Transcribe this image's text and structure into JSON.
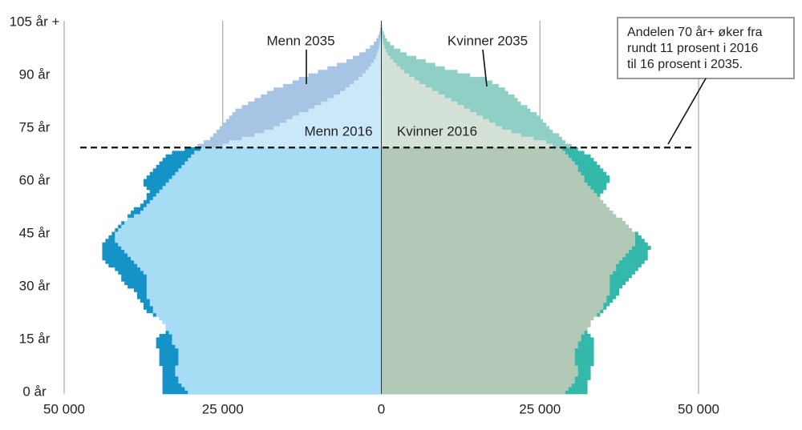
{
  "chart_data": {
    "type": "pyramid",
    "categories": [
      "0 år",
      null,
      null,
      null,
      null,
      null,
      null,
      null,
      null,
      null,
      null,
      null,
      null,
      null,
      null,
      "15 år",
      null,
      null,
      null,
      null,
      null,
      null,
      null,
      null,
      null,
      null,
      null,
      null,
      null,
      null,
      "30 år",
      null,
      null,
      null,
      null,
      null,
      null,
      null,
      null,
      null,
      null,
      null,
      null,
      null,
      null,
      "45 år",
      null,
      null,
      null,
      null,
      null,
      null,
      null,
      null,
      null,
      null,
      null,
      null,
      null,
      null,
      "60 år",
      null,
      null,
      null,
      null,
      null,
      null,
      null,
      null,
      null,
      null,
      null,
      null,
      null,
      null,
      "75 år",
      null,
      null,
      null,
      null,
      null,
      null,
      null,
      null,
      null,
      null,
      null,
      null,
      null,
      null,
      "90 år",
      null,
      null,
      null,
      null,
      null,
      null,
      null,
      null,
      null,
      null,
      null,
      null,
      null,
      null,
      "105 år +"
    ],
    "xlim": [
      -50000,
      50000
    ],
    "xticks": [
      {
        "value": -50000,
        "label": "50 000"
      },
      {
        "value": -25000,
        "label": "25 000"
      },
      0,
      {
        "value": 25000,
        "label": "25 000"
      },
      {
        "value": 50000,
        "label": "50 000"
      }
    ],
    "grid": true,
    "reference_line": 70,
    "annotation": [
      "Andelen 70 år+ øker fra",
      "rundt 11 prosent i 2016",
      "til 16 prosent i 2035."
    ],
    "series": [
      {
        "name": "Menn 2035",
        "color": "#1593c8",
        "color_above_line": "#a7c4e5",
        "values": [
          -34500,
          -34500,
          -34500,
          -34500,
          -34500,
          -34500,
          -34500,
          -34500,
          -35000,
          -35000,
          -35000,
          -35000,
          -35000,
          -35500,
          -35500,
          -35500,
          -35000,
          -34000,
          -33500,
          -34000,
          -34500,
          -35000,
          -36000,
          -37000,
          -37500,
          -37500,
          -38000,
          -38500,
          -38500,
          -39000,
          -40000,
          -40500,
          -41000,
          -41000,
          -41500,
          -42000,
          -43000,
          -43500,
          -44000,
          -44000,
          -44000,
          -44000,
          -44000,
          -43500,
          -43000,
          -42500,
          -42000,
          -41500,
          -41000,
          -40000,
          -40000,
          -39500,
          -39000,
          -38000,
          -37500,
          -37000,
          -37000,
          -36500,
          -37000,
          -37500,
          -37500,
          -37000,
          -36500,
          -36000,
          -35500,
          -35000,
          -34500,
          -34000,
          -33000,
          -31000,
          -29000,
          -28000,
          -27000,
          -26500,
          -26000,
          -25500,
          -25000,
          -24500,
          -24000,
          -23500,
          -23000,
          -22000,
          -21000,
          -20000,
          -19000,
          -18000,
          -17000,
          -15500,
          -14000,
          -13000,
          -11500,
          -10000,
          -8500,
          -7000,
          -5500,
          -4500,
          -3500,
          -2500,
          -1800,
          -1200,
          -800,
          -500,
          -300,
          -200,
          -100,
          -50
        ]
      },
      {
        "name": "Menn 2016",
        "color": "#a6dcf4",
        "color_above_line": "#cbe8f8",
        "values": [
          -30500,
          -31000,
          -31500,
          -32000,
          -32000,
          -32500,
          -32500,
          -32500,
          -32000,
          -32000,
          -32000,
          -32000,
          -32000,
          -32500,
          -33000,
          -33000,
          -33000,
          -33500,
          -34000,
          -34000,
          -34500,
          -35000,
          -35500,
          -36000,
          -36000,
          -36500,
          -36500,
          -37000,
          -37000,
          -37000,
          -37000,
          -37000,
          -37000,
          -37000,
          -37500,
          -38000,
          -38500,
          -39000,
          -39500,
          -40000,
          -40500,
          -41000,
          -41500,
          -42000,
          -42000,
          -42000,
          -41500,
          -41000,
          -40500,
          -40000,
          -39000,
          -38000,
          -37500,
          -37000,
          -36500,
          -36000,
          -35500,
          -35000,
          -34500,
          -34000,
          -33500,
          -33000,
          -32500,
          -32000,
          -31500,
          -31000,
          -30500,
          -30000,
          -29500,
          -28500,
          -25000,
          -24000,
          -22000,
          -20000,
          -18500,
          -17000,
          -16000,
          -15000,
          -14000,
          -13000,
          -11500,
          -10500,
          -9500,
          -8500,
          -7500,
          -6500,
          -5700,
          -5000,
          -4300,
          -3600,
          -3000,
          -2500,
          -2000,
          -1600,
          -1200,
          -900,
          -700,
          -500,
          -350,
          -250,
          -180,
          -120,
          -80,
          -50,
          -30,
          -50
        ]
      },
      {
        "name": "Kvinner 2035",
        "color": "#33b8aa",
        "color_above_line": "#8fcfc5",
        "values": [
          32500,
          32500,
          32500,
          32500,
          33000,
          33000,
          33000,
          33000,
          33500,
          33500,
          33500,
          33500,
          33500,
          33500,
          33500,
          33500,
          33000,
          32500,
          32000,
          32500,
          33000,
          33500,
          34500,
          35000,
          35500,
          36000,
          36500,
          37000,
          37500,
          37500,
          38000,
          38500,
          39000,
          39500,
          40000,
          40500,
          41000,
          41500,
          42000,
          42000,
          42000,
          42500,
          42000,
          41500,
          41000,
          40500,
          39500,
          39000,
          38500,
          37500,
          37000,
          36500,
          35500,
          35000,
          34500,
          34500,
          34500,
          35000,
          35500,
          35500,
          36000,
          36000,
          35500,
          35000,
          34500,
          34000,
          33500,
          33000,
          32000,
          31000,
          30000,
          29000,
          28500,
          28000,
          27000,
          26500,
          26000,
          25500,
          25000,
          24500,
          23500,
          23000,
          22000,
          21500,
          21000,
          20000,
          19500,
          18500,
          17500,
          16500,
          14000,
          12000,
          10000,
          8500,
          7000,
          5500,
          4000,
          3000,
          2000,
          1400,
          900,
          600,
          400,
          200,
          100,
          50
        ]
      },
      {
        "name": "Kvinner 2016",
        "color": "#b2c9b8",
        "color_above_line": "#d4e1d7",
        "values": [
          29000,
          29500,
          30000,
          30500,
          30500,
          31000,
          31000,
          31000,
          30500,
          30500,
          30500,
          30500,
          30500,
          31000,
          31000,
          31500,
          31500,
          32000,
          32500,
          33000,
          33000,
          33500,
          34000,
          34500,
          35000,
          35000,
          35500,
          35500,
          36000,
          36000,
          36000,
          36000,
          36000,
          36000,
          36500,
          37000,
          37000,
          37500,
          38000,
          38500,
          39000,
          39500,
          40000,
          40000,
          40000,
          40000,
          39500,
          39000,
          38500,
          38000,
          37000,
          36500,
          36000,
          35500,
          35000,
          34500,
          34000,
          33500,
          33000,
          32500,
          32000,
          32000,
          31500,
          31000,
          31000,
          30500,
          30000,
          29500,
          29000,
          28500,
          27000,
          26000,
          24000,
          22000,
          20500,
          19000,
          18000,
          17000,
          16000,
          15000,
          14000,
          13000,
          12000,
          11000,
          10000,
          9000,
          8000,
          7000,
          6000,
          5200,
          4400,
          3600,
          3000,
          2400,
          1900,
          1400,
          1000,
          700,
          500,
          300,
          200,
          130,
          80,
          50,
          30,
          50
        ]
      }
    ]
  }
}
